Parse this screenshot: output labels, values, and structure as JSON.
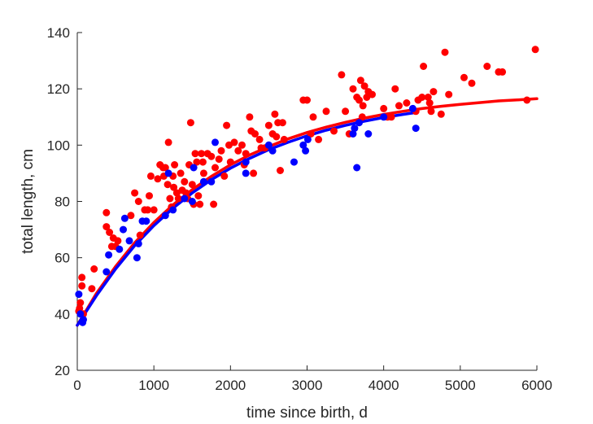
{
  "chart_data": {
    "type": "scatter",
    "xlabel": "time since birth, d",
    "ylabel": "total length, cm",
    "xlim": [
      0,
      6000
    ],
    "ylim": [
      20,
      140
    ],
    "xticks": [
      0,
      1000,
      2000,
      3000,
      4000,
      5000,
      6000
    ],
    "yticks": [
      20,
      40,
      60,
      80,
      100,
      120,
      140
    ],
    "xtick_labels": [
      "0",
      "1000",
      "2000",
      "3000",
      "4000",
      "5000",
      "6000"
    ],
    "ytick_labels": [
      "20",
      "40",
      "60",
      "80",
      "100",
      "120",
      "140"
    ],
    "grid": false,
    "legend": "none",
    "series": [
      {
        "kind": "points",
        "color": "#ff0000",
        "points": [
          [
            20,
            41
          ],
          [
            30,
            42
          ],
          [
            40,
            44
          ],
          [
            60,
            50
          ],
          [
            60,
            53
          ],
          [
            80,
            40
          ],
          [
            190,
            49
          ],
          [
            220,
            56
          ],
          [
            380,
            76
          ],
          [
            380,
            71
          ],
          [
            420,
            69
          ],
          [
            450,
            64
          ],
          [
            470,
            67
          ],
          [
            500,
            64
          ],
          [
            530,
            66
          ],
          [
            700,
            75
          ],
          [
            750,
            83
          ],
          [
            800,
            80
          ],
          [
            820,
            68
          ],
          [
            880,
            77
          ],
          [
            920,
            77
          ],
          [
            940,
            82
          ],
          [
            960,
            89
          ],
          [
            1000,
            77
          ],
          [
            1050,
            88
          ],
          [
            1080,
            93
          ],
          [
            1120,
            92
          ],
          [
            1130,
            89
          ],
          [
            1150,
            92
          ],
          [
            1180,
            86
          ],
          [
            1190,
            101
          ],
          [
            1210,
            81
          ],
          [
            1230,
            78
          ],
          [
            1250,
            89
          ],
          [
            1260,
            85
          ],
          [
            1270,
            93
          ],
          [
            1300,
            83
          ],
          [
            1320,
            81
          ],
          [
            1350,
            90
          ],
          [
            1370,
            84
          ],
          [
            1400,
            87
          ],
          [
            1420,
            83
          ],
          [
            1440,
            81
          ],
          [
            1460,
            93
          ],
          [
            1480,
            108
          ],
          [
            1500,
            86
          ],
          [
            1520,
            79
          ],
          [
            1540,
            97
          ],
          [
            1560,
            94
          ],
          [
            1580,
            82
          ],
          [
            1600,
            79
          ],
          [
            1620,
            97
          ],
          [
            1640,
            94
          ],
          [
            1650,
            90
          ],
          [
            1700,
            97
          ],
          [
            1750,
            96
          ],
          [
            1780,
            79
          ],
          [
            1800,
            92
          ],
          [
            1850,
            95
          ],
          [
            1880,
            98
          ],
          [
            1920,
            89
          ],
          [
            1950,
            107
          ],
          [
            1980,
            100
          ],
          [
            2000,
            94
          ],
          [
            2050,
            101
          ],
          [
            2100,
            98
          ],
          [
            2150,
            100
          ],
          [
            2180,
            93
          ],
          [
            2200,
            97
          ],
          [
            2250,
            110
          ],
          [
            2270,
            105
          ],
          [
            2300,
            90
          ],
          [
            2320,
            104
          ],
          [
            2380,
            102
          ],
          [
            2400,
            99
          ],
          [
            2450,
            99
          ],
          [
            2500,
            107
          ],
          [
            2550,
            104
          ],
          [
            2580,
            111
          ],
          [
            2600,
            103
          ],
          [
            2620,
            108
          ],
          [
            2650,
            91
          ],
          [
            2680,
            108
          ],
          [
            2700,
            102
          ],
          [
            2950,
            116
          ],
          [
            3000,
            116
          ],
          [
            3050,
            104
          ],
          [
            3080,
            110
          ],
          [
            3150,
            102
          ],
          [
            3250,
            112
          ],
          [
            3350,
            105
          ],
          [
            3450,
            125
          ],
          [
            3500,
            112
          ],
          [
            3550,
            104
          ],
          [
            3600,
            120
          ],
          [
            3650,
            117
          ],
          [
            3680,
            116
          ],
          [
            3700,
            123
          ],
          [
            3720,
            110
          ],
          [
            3730,
            114
          ],
          [
            3750,
            121
          ],
          [
            3780,
            117
          ],
          [
            3800,
            119
          ],
          [
            3850,
            118
          ],
          [
            4000,
            113
          ],
          [
            4050,
            110
          ],
          [
            4100,
            110
          ],
          [
            4150,
            120
          ],
          [
            4200,
            114
          ],
          [
            4300,
            115
          ],
          [
            4420,
            112
          ],
          [
            4450,
            116
          ],
          [
            4500,
            117
          ],
          [
            4520,
            128
          ],
          [
            4580,
            117
          ],
          [
            4600,
            115
          ],
          [
            4620,
            112
          ],
          [
            4650,
            119
          ],
          [
            4750,
            111
          ],
          [
            4800,
            133
          ],
          [
            4850,
            118
          ],
          [
            5050,
            124
          ],
          [
            5150,
            122
          ],
          [
            5350,
            128
          ],
          [
            5500,
            126
          ],
          [
            5550,
            126
          ],
          [
            5870,
            116
          ],
          [
            5980,
            134
          ]
        ]
      },
      {
        "kind": "points",
        "color": "#0000ff",
        "points": [
          [
            20,
            47
          ],
          [
            40,
            40
          ],
          [
            70,
            37
          ],
          [
            80,
            38
          ],
          [
            380,
            55
          ],
          [
            410,
            61
          ],
          [
            550,
            63
          ],
          [
            600,
            70
          ],
          [
            620,
            74
          ],
          [
            680,
            66
          ],
          [
            780,
            60
          ],
          [
            800,
            65
          ],
          [
            850,
            73
          ],
          [
            900,
            73
          ],
          [
            1150,
            75
          ],
          [
            1190,
            90
          ],
          [
            1250,
            77
          ],
          [
            1400,
            81
          ],
          [
            1500,
            80
          ],
          [
            1520,
            92
          ],
          [
            1650,
            87
          ],
          [
            1750,
            87
          ],
          [
            1800,
            101
          ],
          [
            2200,
            90
          ],
          [
            2200,
            94
          ],
          [
            2500,
            100
          ],
          [
            2550,
            98
          ],
          [
            2830,
            94
          ],
          [
            2950,
            100
          ],
          [
            2980,
            98
          ],
          [
            3010,
            102
          ],
          [
            3600,
            104
          ],
          [
            3620,
            106
          ],
          [
            3650,
            92
          ],
          [
            3680,
            108
          ],
          [
            3800,
            104
          ],
          [
            4000,
            110
          ],
          [
            4380,
            113
          ],
          [
            4420,
            106
          ]
        ]
      },
      {
        "kind": "curve",
        "color": "#ff0000",
        "points": [
          [
            0,
            36
          ],
          [
            250,
            47.3
          ],
          [
            500,
            56.9
          ],
          [
            750,
            65.3
          ],
          [
            1000,
            72.5
          ],
          [
            1250,
            78.8
          ],
          [
            1500,
            84.2
          ],
          [
            1750,
            88.9
          ],
          [
            2000,
            93.0
          ],
          [
            2250,
            96.5
          ],
          [
            2500,
            99.5
          ],
          [
            2750,
            102.2
          ],
          [
            3000,
            104.5
          ],
          [
            3250,
            106.4
          ],
          [
            3500,
            108.1
          ],
          [
            3750,
            109.6
          ],
          [
            4000,
            110.9
          ],
          [
            4250,
            112.0
          ],
          [
            4500,
            113.0
          ],
          [
            4750,
            113.8
          ],
          [
            5000,
            114.5
          ],
          [
            5250,
            115.1
          ],
          [
            5500,
            115.7
          ],
          [
            5750,
            116.1
          ],
          [
            6000,
            116.5
          ]
        ]
      },
      {
        "kind": "curve",
        "color": "#0000ff",
        "points": [
          [
            0,
            36
          ],
          [
            250,
            46.5
          ],
          [
            500,
            56.0
          ],
          [
            750,
            64.3
          ],
          [
            1000,
            71.4
          ],
          [
            1250,
            77.6
          ],
          [
            1500,
            83.0
          ],
          [
            1750,
            87.7
          ],
          [
            2000,
            91.8
          ],
          [
            2250,
            95.3
          ],
          [
            2500,
            98.4
          ],
          [
            2750,
            101.0
          ],
          [
            3000,
            103.3
          ],
          [
            3250,
            105.3
          ],
          [
            3500,
            107.0
          ],
          [
            3750,
            108.5
          ],
          [
            4000,
            109.8
          ],
          [
            4250,
            110.9
          ],
          [
            4400,
            111.5
          ]
        ]
      }
    ]
  }
}
